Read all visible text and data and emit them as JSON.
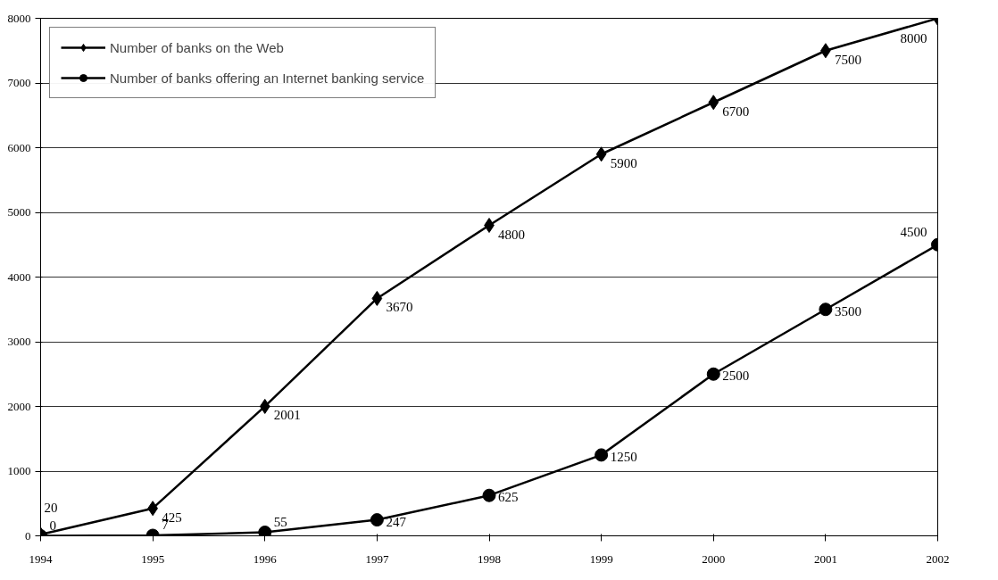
{
  "chart_data": {
    "type": "line",
    "x": [
      1994,
      1995,
      1996,
      1997,
      1998,
      1999,
      2000,
      2001,
      2002
    ],
    "xlim": [
      1994,
      2002
    ],
    "xticks": [
      1994,
      1995,
      1996,
      1997,
      1998,
      1999,
      2000,
      2001,
      2002
    ],
    "ylim": [
      0,
      8000
    ],
    "yticks": [
      0,
      1000,
      2000,
      3000,
      4000,
      5000,
      6000,
      7000,
      8000
    ],
    "series": [
      {
        "name": "Number of banks on the Web",
        "color": "#000000",
        "marker": "diamond",
        "values": [
          20,
          425,
          2001,
          3670,
          4800,
          5900,
          6700,
          7500,
          8000
        ]
      },
      {
        "name": "Number of banks offering an Internet banking service",
        "color": "#000000",
        "marker": "circle",
        "values": [
          0,
          7,
          55,
          247,
          625,
          1250,
          2500,
          3500,
          4500
        ]
      }
    ],
    "data_labels": true,
    "grid": "y",
    "legend": "top left",
    "line_style": "solid"
  }
}
